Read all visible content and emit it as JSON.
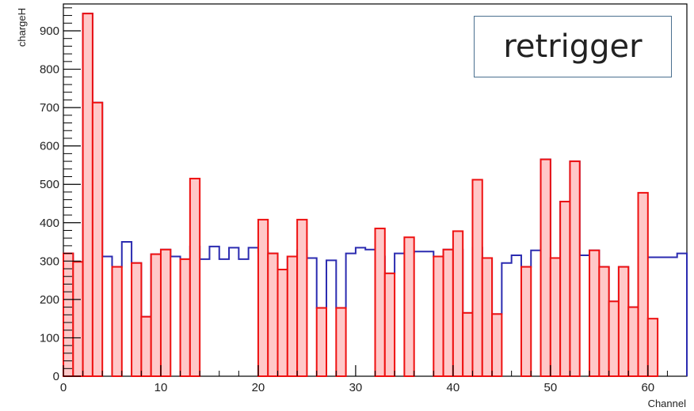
{
  "chart_data": {
    "type": "bar",
    "xlabel": "Channel",
    "ylabel": "chargeH",
    "xlim": [
      0,
      64
    ],
    "ylim": [
      0,
      970
    ],
    "x_ticks": [
      0,
      10,
      20,
      30,
      40,
      50,
      60
    ],
    "y_ticks": [
      0,
      100,
      200,
      300,
      400,
      500,
      600,
      700,
      800,
      900
    ],
    "annotation": "retrigger",
    "series": [
      {
        "color": "#2b2bb0",
        "values": [
          320,
          298,
          945,
          713,
          312,
          285,
          350,
          295,
          155,
          318,
          330,
          312,
          305,
          338,
          305,
          338,
          305,
          335,
          305,
          335,
          325,
          320,
          278,
          312,
          328,
          308,
          178,
          302,
          178,
          320,
          335,
          330,
          312,
          268,
          320,
          322,
          325,
          325,
          312,
          330,
          330,
          165,
          335,
          308,
          162,
          295,
          315,
          285,
          328,
          565,
          308,
          455,
          560,
          315,
          328,
          285,
          195,
          285,
          180,
          310,
          310,
          310,
          310,
          320
        ]
      },
      {
        "color": "#ee1111",
        "fill": "#ffc8c8",
        "values": [
          320,
          298,
          945,
          713,
          0,
          285,
          0,
          295,
          155,
          318,
          330,
          0,
          305,
          515,
          0,
          0,
          0,
          0,
          0,
          0,
          408,
          320,
          278,
          312,
          408,
          0,
          178,
          0,
          178,
          0,
          0,
          0,
          385,
          268,
          0,
          362,
          0,
          0,
          312,
          330,
          378,
          165,
          512,
          308,
          162,
          0,
          0,
          285,
          0,
          565,
          308,
          455,
          560,
          0,
          328,
          285,
          195,
          285,
          180,
          478,
          150,
          0,
          0,
          0
        ]
      }
    ]
  }
}
